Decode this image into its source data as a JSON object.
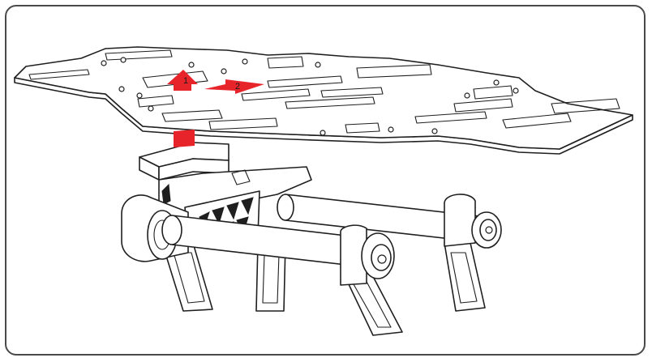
{
  "illustration": {
    "colors": {
      "outline": "#1f1f1f",
      "arrow": "#e8242b",
      "background": "#ffffff",
      "border": "#4a4a4a"
    },
    "steps": [
      {
        "label": "1"
      },
      {
        "label": "2"
      }
    ]
  }
}
